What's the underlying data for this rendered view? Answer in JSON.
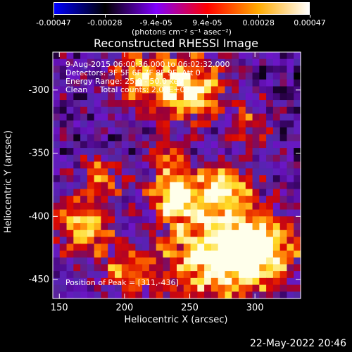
{
  "colorbar": {
    "ticks": [
      "-0.00047",
      "-0.00028",
      "-9.4e-05",
      "9.4e-05",
      "0.00028",
      "0.00047"
    ],
    "unit": "(photons cm⁻² s⁻¹ asec⁻²)",
    "stops": [
      "#0000ff",
      "#000000",
      "#8000ff",
      "#ff0000",
      "#ffaa00",
      "#ffffff"
    ]
  },
  "chart_data": {
    "type": "heatmap",
    "title": "Reconstructed RHESSI Image",
    "xlabel": "Heliocentric X (arcsec)",
    "ylabel": "Heliocentric Y (arcsec)",
    "xlim": [
      145,
      335
    ],
    "ylim": [
      -465,
      -270
    ],
    "xticks": [
      150,
      200,
      250,
      300
    ],
    "yticks": [
      -300,
      -350,
      -400,
      -450
    ],
    "annotations": [
      "9-Aug-2015 06:00:36.000 to 06:02:32.000",
      "Detectors: 3F 5F 6F 7F 8F 9F, Att 0",
      "Energy Range: 25.0 - 50.0 keV",
      "Clean     Total counts: 2.03E+03"
    ],
    "peak_label": "Position of Peak = [311,-436]",
    "peak": [
      311,
      -436
    ]
  },
  "timestamp": "22-May-2022 20:46"
}
